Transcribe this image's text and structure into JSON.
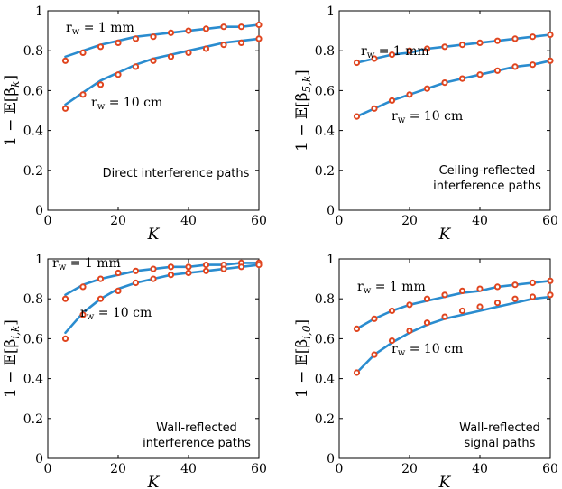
{
  "colors": {
    "curve": "#2a8ccf",
    "marker": "#e0451f",
    "axis": "#000000"
  },
  "chart_data": [
    {
      "type": "line",
      "panel": "top-left",
      "ylabel": "1 − 𝔼[βk]",
      "ylabel_parts": {
        "prefix": "1 − 𝔼[β",
        "sub": "k",
        "suffix": "]"
      },
      "xlabel": "K",
      "caption": [
        "Direct interference paths"
      ],
      "xlim": [
        0,
        60
      ],
      "ylim": [
        0,
        1
      ],
      "xticks": [
        0,
        20,
        40,
        60
      ],
      "yticks": [
        0,
        0.2,
        0.4,
        0.6,
        0.8,
        1
      ],
      "ytick_labels": [
        "0",
        "0.2",
        "0.4",
        "0.6",
        "0.8",
        "1"
      ],
      "series": [
        {
          "name": "rw = 1 mm",
          "label_main": "r",
          "label_sub": "w",
          "label_rest": " = 1 mm",
          "x": [
            5,
            10,
            15,
            20,
            25,
            30,
            35,
            40,
            45,
            50,
            55,
            60
          ],
          "markers": [
            0.75,
            0.79,
            0.82,
            0.84,
            0.86,
            0.87,
            0.89,
            0.9,
            0.91,
            0.92,
            0.92,
            0.93
          ],
          "curve": [
            0.77,
            0.8,
            0.83,
            0.85,
            0.87,
            0.88,
            0.89,
            0.9,
            0.91,
            0.92,
            0.92,
            0.93
          ]
        },
        {
          "name": "rw = 10 cm",
          "label_main": "r",
          "label_sub": "w",
          "label_rest": " = 10 cm",
          "x": [
            5,
            10,
            15,
            20,
            25,
            30,
            35,
            40,
            45,
            50,
            55,
            60
          ],
          "markers": [
            0.51,
            0.58,
            0.63,
            0.68,
            0.72,
            0.75,
            0.77,
            0.79,
            0.81,
            0.83,
            0.84,
            0.86
          ],
          "curve": [
            0.53,
            0.59,
            0.65,
            0.69,
            0.73,
            0.76,
            0.78,
            0.8,
            0.82,
            0.84,
            0.85,
            0.86
          ]
        }
      ]
    },
    {
      "type": "line",
      "panel": "top-right",
      "ylabel": "1 − 𝔼[β5,k]",
      "ylabel_parts": {
        "prefix": "1 − 𝔼[β",
        "sub": "5,k",
        "suffix": "]"
      },
      "xlabel": "K",
      "caption": [
        "Ceiling-reflected",
        "interference paths"
      ],
      "xlim": [
        0,
        60
      ],
      "ylim": [
        0,
        1
      ],
      "xticks": [
        0,
        20,
        40,
        60
      ],
      "yticks": [
        0,
        0.2,
        0.4,
        0.6,
        0.8,
        1
      ],
      "ytick_labels": [
        "0",
        "0.2",
        "0.4",
        "0.6",
        "0.8",
        "1"
      ],
      "series": [
        {
          "name": "rw = 1 mm",
          "label_main": "r",
          "label_sub": "w",
          "label_rest": " = 1 mm",
          "x": [
            5,
            10,
            15,
            20,
            25,
            30,
            35,
            40,
            45,
            50,
            55,
            60
          ],
          "markers": [
            0.74,
            0.76,
            0.78,
            0.8,
            0.81,
            0.82,
            0.83,
            0.84,
            0.85,
            0.86,
            0.87,
            0.88
          ],
          "curve": [
            0.74,
            0.76,
            0.78,
            0.79,
            0.81,
            0.82,
            0.83,
            0.84,
            0.85,
            0.86,
            0.87,
            0.88
          ]
        },
        {
          "name": "rw = 10 cm",
          "label_main": "r",
          "label_sub": "w",
          "label_rest": " = 10 cm",
          "x": [
            5,
            10,
            15,
            20,
            25,
            30,
            35,
            40,
            45,
            50,
            55,
            60
          ],
          "markers": [
            0.47,
            0.51,
            0.55,
            0.58,
            0.61,
            0.64,
            0.66,
            0.68,
            0.7,
            0.72,
            0.73,
            0.75
          ],
          "curve": [
            0.47,
            0.51,
            0.55,
            0.58,
            0.61,
            0.64,
            0.66,
            0.68,
            0.7,
            0.72,
            0.73,
            0.75
          ]
        }
      ]
    },
    {
      "type": "line",
      "panel": "bottom-left",
      "ylabel": "1 − 𝔼[βi,k]",
      "ylabel_parts": {
        "prefix": "1 − 𝔼[β",
        "sub": "i,k",
        "suffix": "]"
      },
      "xlabel": "K",
      "caption": [
        "Wall-reflected",
        "interference paths"
      ],
      "xlim": [
        0,
        60
      ],
      "ylim": [
        0,
        1
      ],
      "xticks": [
        0,
        20,
        40,
        60
      ],
      "yticks": [
        0,
        0.2,
        0.4,
        0.6,
        0.8,
        1
      ],
      "ytick_labels": [
        "0",
        "0.2",
        "0.4",
        "0.6",
        "0.8",
        "1"
      ],
      "series": [
        {
          "name": "rw = 1 mm",
          "label_main": "r",
          "label_sub": "w",
          "label_rest": " = 1 mm",
          "x": [
            5,
            10,
            15,
            20,
            25,
            30,
            35,
            40,
            45,
            50,
            55,
            60
          ],
          "markers": [
            0.8,
            0.86,
            0.9,
            0.93,
            0.94,
            0.95,
            0.96,
            0.96,
            0.97,
            0.97,
            0.98,
            0.98
          ],
          "curve": [
            0.82,
            0.87,
            0.9,
            0.92,
            0.94,
            0.95,
            0.96,
            0.96,
            0.97,
            0.97,
            0.98,
            0.98
          ]
        },
        {
          "name": "rw = 10 cm",
          "label_main": "r",
          "label_sub": "w",
          "label_rest": " = 10 cm",
          "x": [
            5,
            10,
            15,
            20,
            25,
            30,
            35,
            40,
            45,
            50,
            55,
            60
          ],
          "markers": [
            0.6,
            0.72,
            0.8,
            0.84,
            0.88,
            0.9,
            0.92,
            0.93,
            0.94,
            0.95,
            0.96,
            0.97
          ],
          "curve": [
            0.63,
            0.73,
            0.8,
            0.85,
            0.88,
            0.9,
            0.92,
            0.93,
            0.94,
            0.95,
            0.96,
            0.97
          ]
        }
      ]
    },
    {
      "type": "line",
      "panel": "bottom-right",
      "ylabel": "1 − 𝔼[βi,0]",
      "ylabel_parts": {
        "prefix": "1 − 𝔼[β",
        "sub": "i,0",
        "suffix": "]"
      },
      "xlabel": "K",
      "caption": [
        "Wall-reflected",
        "signal paths"
      ],
      "xlim": [
        0,
        60
      ],
      "ylim": [
        0,
        1
      ],
      "xticks": [
        0,
        20,
        40,
        60
      ],
      "yticks": [
        0,
        0.2,
        0.4,
        0.6,
        0.8,
        1
      ],
      "ytick_labels": [
        "0",
        "0.2",
        "0.4",
        "0.6",
        "0.8",
        "1"
      ],
      "series": [
        {
          "name": "rw = 1 mm",
          "label_main": "r",
          "label_sub": "w",
          "label_rest": " = 1 mm",
          "x": [
            5,
            10,
            15,
            20,
            25,
            30,
            35,
            40,
            45,
            50,
            55,
            60
          ],
          "markers": [
            0.65,
            0.7,
            0.74,
            0.77,
            0.8,
            0.82,
            0.84,
            0.85,
            0.86,
            0.87,
            0.88,
            0.89
          ],
          "curve": [
            0.65,
            0.7,
            0.74,
            0.77,
            0.79,
            0.81,
            0.83,
            0.84,
            0.86,
            0.87,
            0.88,
            0.89
          ]
        },
        {
          "name": "rw = 10 cm",
          "label_main": "r",
          "label_sub": "w",
          "label_rest": " = 10 cm",
          "x": [
            5,
            10,
            15,
            20,
            25,
            30,
            35,
            40,
            45,
            50,
            55,
            60
          ],
          "markers": [
            0.43,
            0.52,
            0.59,
            0.64,
            0.68,
            0.71,
            0.74,
            0.76,
            0.78,
            0.8,
            0.81,
            0.82
          ],
          "curve": [
            0.43,
            0.52,
            0.58,
            0.63,
            0.67,
            0.7,
            0.72,
            0.74,
            0.76,
            0.78,
            0.8,
            0.81
          ]
        }
      ]
    }
  ]
}
